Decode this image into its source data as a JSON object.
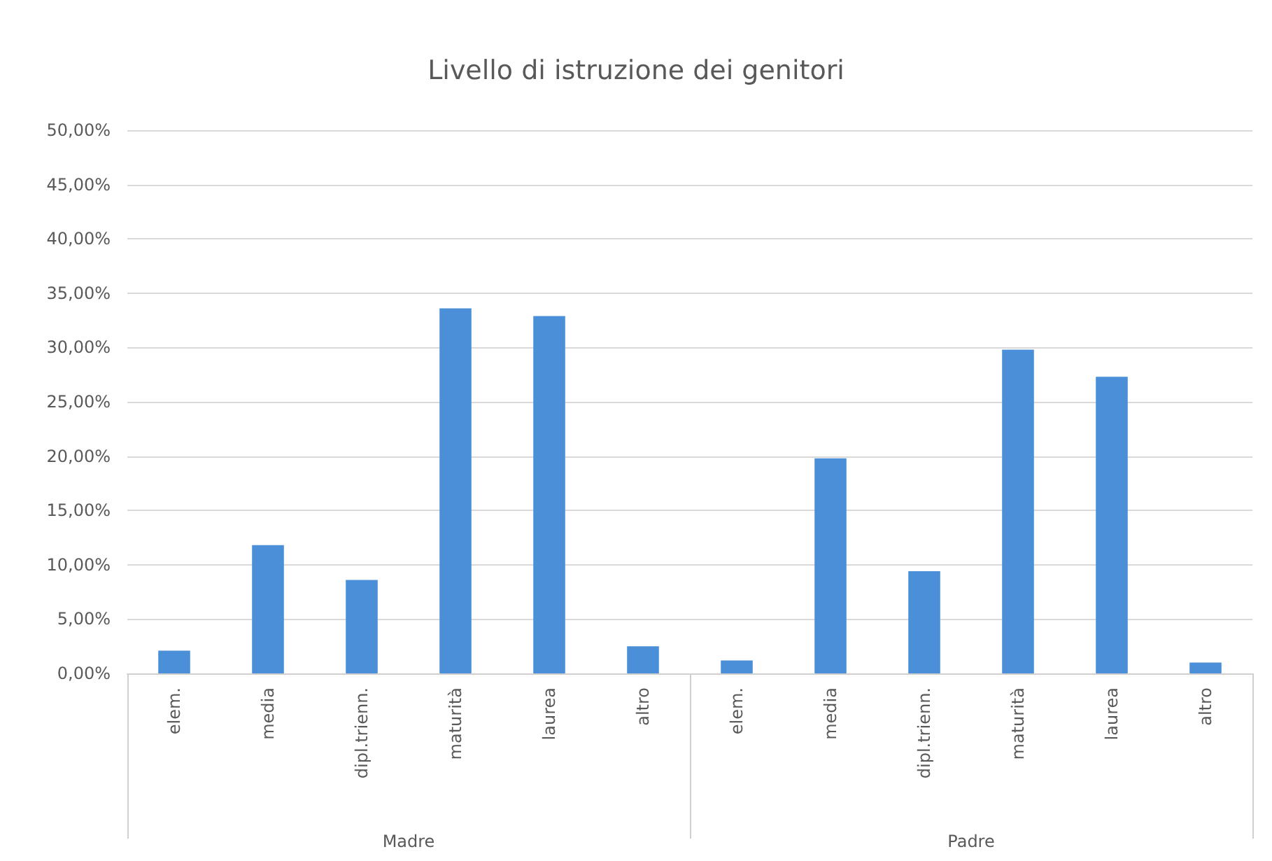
{
  "chart_data": {
    "type": "bar",
    "title": "Livello di istruzione dei genitori",
    "categories": [
      "elem.",
      "media",
      "dipl.trienn.",
      "maturità",
      "laurea",
      "altro",
      "elem.",
      "media",
      "dipl.trienn.",
      "maturità",
      "laurea",
      "altro"
    ],
    "values": [
      2.1,
      11.8,
      8.6,
      33.6,
      32.9,
      2.5,
      1.2,
      19.8,
      9.4,
      29.8,
      27.3,
      1.0
    ],
    "color": "#4a8fd8",
    "annotations": [
      "Madre",
      "Padre"
    ],
    "ylim": [
      0,
      50
    ],
    "yticks": [
      {
        "value": 0,
        "label": "0,00%"
      },
      {
        "value": 5,
        "label": "5,00%"
      },
      {
        "value": 10,
        "label": "10,00%"
      },
      {
        "value": 15,
        "label": "15,00%"
      },
      {
        "value": 20,
        "label": "20,00%"
      },
      {
        "value": 25,
        "label": "25,00%"
      },
      {
        "value": 30,
        "label": "30,00%"
      },
      {
        "value": 35,
        "label": "35,00%"
      },
      {
        "value": 40,
        "label": "40,00%"
      },
      {
        "value": 45,
        "label": "45,00%"
      },
      {
        "value": 50,
        "label": "50,00%"
      }
    ],
    "grid": "y"
  }
}
